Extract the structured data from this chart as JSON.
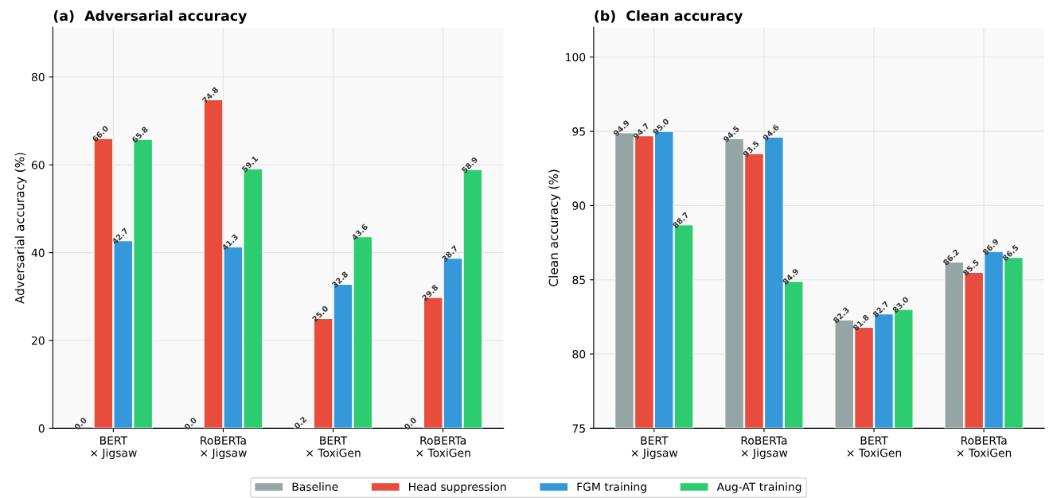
{
  "chart_data": [
    {
      "type": "bar",
      "title": "(a)  Adversarial accuracy",
      "ylabel": "Adversarial accuracy (%)",
      "categories": [
        "BERT\n× Jigsaw",
        "RoBERTa\n× Jigsaw",
        "BERT\n× ToxiGen",
        "RoBERTa\n× ToxiGen"
      ],
      "series": [
        {
          "name": "Baseline",
          "color": "#95a5a6",
          "values": [
            0.0,
            0.0,
            0.2,
            0.0
          ],
          "value_labels": [
            "0.0",
            "0.0",
            "0.2",
            "0.0"
          ]
        },
        {
          "name": "Head suppression",
          "color": "#e74c3c",
          "values": [
            66.0,
            74.8,
            25.0,
            29.8
          ],
          "value_labels": [
            "66.0",
            "74.8",
            "25.0",
            "29.8"
          ]
        },
        {
          "name": "FGM training",
          "color": "#3498db",
          "values": [
            42.7,
            41.3,
            32.8,
            38.7
          ],
          "value_labels": [
            "42.7",
            "41.3",
            "32.8",
            "38.7"
          ]
        },
        {
          "name": "Aug-AT training",
          "color": "#2ecc71",
          "values": [
            65.8,
            59.1,
            43.6,
            58.9
          ],
          "value_labels": [
            "65.8",
            "59.1",
            "43.6",
            "58.9"
          ]
        }
      ],
      "ylim": [
        0,
        91.3
      ],
      "yticks": [
        0,
        20,
        40,
        60,
        80
      ],
      "grid": true,
      "legend": "bottom"
    },
    {
      "type": "bar",
      "title": "(b)  Clean accuracy",
      "ylabel": "Clean accuracy (%)",
      "categories": [
        "BERT\n× Jigsaw",
        "RoBERTa\n× Jigsaw",
        "BERT\n× ToxiGen",
        "RoBERTa\n× ToxiGen"
      ],
      "series": [
        {
          "color": "#95a5a6",
          "values": [
            94.9,
            94.5,
            82.3,
            86.2
          ],
          "value_labels": [
            "94.9",
            "94.5",
            "82.3",
            "86.2"
          ]
        },
        {
          "color": "#e74c3c",
          "values": [
            94.7,
            93.5,
            81.8,
            85.5
          ],
          "value_labels": [
            "94.7",
            "93.5",
            "81.8",
            "85.5"
          ]
        },
        {
          "color": "#3498db",
          "values": [
            95.0,
            94.6,
            82.7,
            86.9
          ],
          "value_labels": [
            "95.0",
            "94.6",
            "82.7",
            "86.9"
          ]
        },
        {
          "color": "#2ecc71",
          "values": [
            88.7,
            84.9,
            83.0,
            86.5
          ],
          "value_labels": [
            "88.7",
            "84.9",
            "83.0",
            "86.5"
          ]
        }
      ],
      "ylim": [
        75,
        102
      ],
      "yticks": [
        75,
        80,
        85,
        90,
        95,
        100
      ],
      "grid": true
    }
  ]
}
